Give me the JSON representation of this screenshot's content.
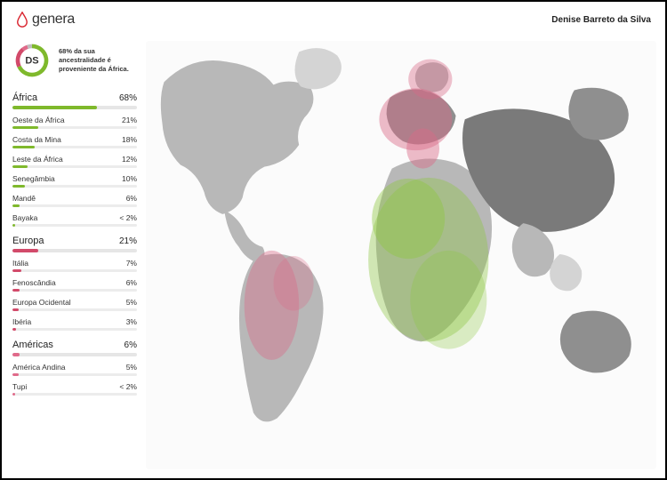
{
  "brand": {
    "name": "genera",
    "logo_color": "#d9232e"
  },
  "user": {
    "display_name": "Denise Barreto da Silva",
    "initials": "DS"
  },
  "summary": {
    "text": "68% da sua ancestralidade é proveniente da África.",
    "donut_segments": [
      {
        "pct": 68,
        "color": "#7fb92c"
      },
      {
        "pct": 21,
        "color": "#d24a6a"
      },
      {
        "pct": 6,
        "color": "#e06a8a"
      },
      {
        "pct": 5,
        "color": "#bdbdbd"
      }
    ]
  },
  "regions": [
    {
      "name": "África",
      "pct_label": "68%",
      "pct": 68,
      "color": "#7fb92c",
      "subs": [
        {
          "name": "Oeste da África",
          "pct_label": "21%",
          "pct": 21
        },
        {
          "name": "Costa da Mina",
          "pct_label": "18%",
          "pct": 18
        },
        {
          "name": "Leste da África",
          "pct_label": "12%",
          "pct": 12
        },
        {
          "name": "Senegâmbia",
          "pct_label": "10%",
          "pct": 10
        },
        {
          "name": "Mandê",
          "pct_label": "6%",
          "pct": 6
        },
        {
          "name": "Bayaka",
          "pct_label": "< 2%",
          "pct": 2
        }
      ]
    },
    {
      "name": "Europa",
      "pct_label": "21%",
      "pct": 21,
      "color": "#d24a6a",
      "subs": [
        {
          "name": "Itália",
          "pct_label": "7%",
          "pct": 7
        },
        {
          "name": "Fenoscândia",
          "pct_label": "6%",
          "pct": 6
        },
        {
          "name": "Europa Ocidental",
          "pct_label": "5%",
          "pct": 5
        },
        {
          "name": "Ibéria",
          "pct_label": "3%",
          "pct": 3
        }
      ]
    },
    {
      "name": "Américas",
      "pct_label": "6%",
      "pct": 6,
      "color": "#e06a8a",
      "subs": [
        {
          "name": "América Andina",
          "pct_label": "5%",
          "pct": 5
        },
        {
          "name": "Tupi",
          "pct_label": "< 2%",
          "pct": 2
        }
      ]
    }
  ],
  "map": {
    "background": "#fbfbfb",
    "land_base": "#b8b8b8",
    "land_light": "#d4d4d4",
    "land_dark": "#8f8f8f",
    "land_darker": "#7a7a7a",
    "highlight_green": "#8cc63f",
    "highlight_green_a": 0.55,
    "highlight_pink": "#d96a87",
    "highlight_pink_a": 0.55
  }
}
